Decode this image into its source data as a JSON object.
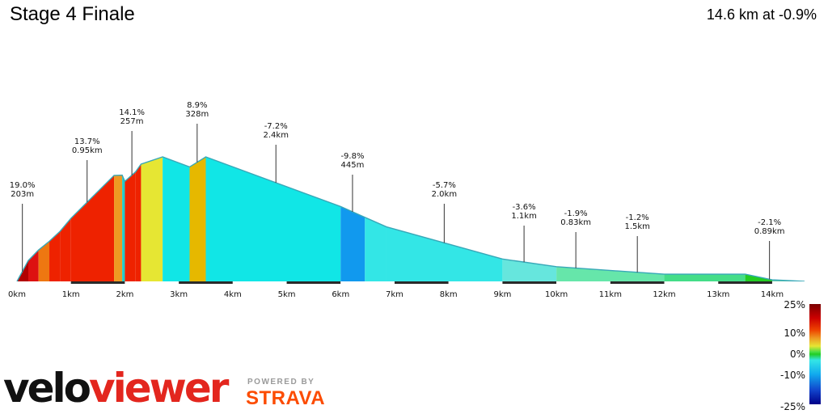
{
  "header": {
    "title": "Stage 4 Finale",
    "summary": "14.6 km at -0.9%"
  },
  "branding": {
    "logo_part1": "velo",
    "logo_part2": "viewer",
    "powered_by": "POWERED BY",
    "strava": "STRAVA"
  },
  "colors": {
    "outline": "#38a8b8",
    "axis_band": "#2a2a2a",
    "brand_red": "#e3261e",
    "strava_orange": "#fc4c02"
  },
  "chart_data": {
    "type": "area",
    "x_unit": "km",
    "xlim": [
      0,
      14.6
    ],
    "x_ticks": [
      "0km",
      "1km",
      "2km",
      "3km",
      "4km",
      "5km",
      "6km",
      "7km",
      "8km",
      "9km",
      "10km",
      "11km",
      "12km",
      "13km",
      "14km"
    ],
    "profile_points": [
      [
        0.0,
        0.0
      ],
      [
        0.21,
        8.1
      ],
      [
        0.4,
        12.2
      ],
      [
        0.6,
        15.6
      ],
      [
        0.8,
        19.5
      ],
      [
        1.0,
        24.5
      ],
      [
        1.8,
        41.2
      ],
      [
        1.95,
        41.3
      ],
      [
        2.0,
        38.9
      ],
      [
        2.2,
        42.6
      ],
      [
        2.3,
        45.6
      ],
      [
        2.7,
        48.4
      ],
      [
        3.2,
        44.5
      ],
      [
        3.5,
        48.4
      ],
      [
        6.0,
        29.1
      ],
      [
        6.45,
        24.9
      ],
      [
        6.85,
        21.2
      ],
      [
        9.0,
        8.7
      ],
      [
        10.0,
        5.7
      ],
      [
        12.0,
        2.8
      ],
      [
        13.5,
        2.8
      ],
      [
        14.0,
        0.6
      ],
      [
        14.6,
        0.0
      ]
    ],
    "segment_gradients_pct": [
      19.0,
      12.0,
      10.0,
      13.0,
      14.0,
      13.7,
      4.0,
      -2.0,
      8.0,
      14.1,
      3.0,
      -2.0,
      8.9,
      -3.4,
      -9.8,
      -3.1,
      -6.1,
      -1.3,
      -0.7,
      -0.7,
      0.0,
      -3.0
    ],
    "segment_colors": [
      "#b20000",
      "#dd1111",
      "#ee7711",
      "#ee2200",
      "#ee2200",
      "#ee2200",
      "#ee9922",
      "#22cccc",
      "#ee2200",
      "#ee2200",
      "#e6e633",
      "#11e6e6",
      "#e6b800",
      "#11e6e6",
      "#1199ee",
      "#33e6e6",
      "#33e6e6",
      "#66e6dd",
      "#66e6aa",
      "#44dd88",
      "#22cc22",
      "#66ccaa"
    ],
    "annotations": [
      {
        "grade": "19.0%",
        "length": "203m",
        "x": 0.1
      },
      {
        "grade": "13.7%",
        "length": "0.95km",
        "x": 1.3
      },
      {
        "grade": "14.1%",
        "length": "257m",
        "x": 2.13
      },
      {
        "grade": "8.9%",
        "length": "328m",
        "x": 3.34
      },
      {
        "grade": "-7.2%",
        "length": "2.4km",
        "x": 4.8
      },
      {
        "grade": "-9.8%",
        "length": "445m",
        "x": 6.22
      },
      {
        "grade": "-5.7%",
        "length": "2.0km",
        "x": 7.92
      },
      {
        "grade": "-3.6%",
        "length": "1.1km",
        "x": 9.4
      },
      {
        "grade": "-1.9%",
        "length": "0.83km",
        "x": 10.36
      },
      {
        "grade": "-1.2%",
        "length": "1.5km",
        "x": 11.5
      },
      {
        "grade": "-2.1%",
        "length": "0.89km",
        "x": 13.95
      }
    ],
    "legend": {
      "type": "gradient colorbar",
      "placement": "bottom-right",
      "range_pct": [
        -25,
        25
      ],
      "ticks": [
        "25%",
        "10%",
        "0%",
        "-10%",
        "-25%"
      ],
      "tick_values": [
        25,
        10,
        0,
        -10,
        -25
      ],
      "stops": [
        {
          "value": 25,
          "color": "#7a0000"
        },
        {
          "value": 18,
          "color": "#cc0000"
        },
        {
          "value": 12,
          "color": "#ee4400"
        },
        {
          "value": 8,
          "color": "#ee9922"
        },
        {
          "value": 4,
          "color": "#e6e633"
        },
        {
          "value": 1,
          "color": "#44dd44"
        },
        {
          "value": 0,
          "color": "#22cc22"
        },
        {
          "value": -3,
          "color": "#33e6e6"
        },
        {
          "value": -10,
          "color": "#11aaee"
        },
        {
          "value": -18,
          "color": "#1144cc"
        },
        {
          "value": -25,
          "color": "#000088"
        }
      ]
    }
  }
}
